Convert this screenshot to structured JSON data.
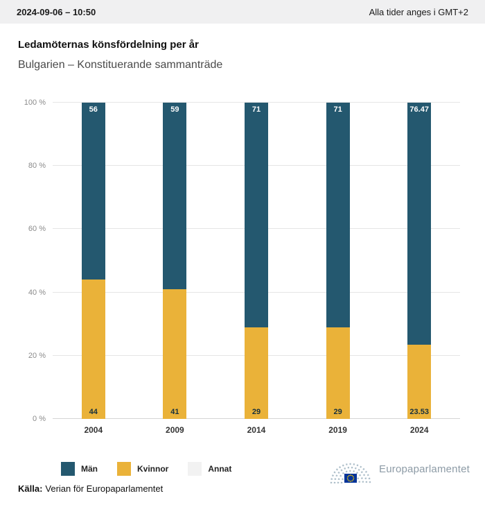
{
  "header": {
    "datetime": "2024-09-06 – 10:50",
    "timezone": "Alla tider anges i GMT+2"
  },
  "title": "Ledamöternas könsfördelning per år",
  "subtitle": "Bulgarien – Konstituerande sammanträde",
  "chart_data": {
    "type": "bar",
    "stacked": true,
    "title": "Ledamöternas könsfördelning per år",
    "subtitle": "Bulgarien – Konstituerande sammanträde",
    "categories": [
      "2004",
      "2009",
      "2014",
      "2019",
      "2024"
    ],
    "series": [
      {
        "name": "Män",
        "color": "#24586f",
        "values": [
          56,
          59,
          71,
          71,
          76.47
        ],
        "labels": [
          "56",
          "59",
          "71",
          "71",
          "76.47"
        ],
        "label_color": "#ffffff"
      },
      {
        "name": "Kvinnor",
        "color": "#eab239",
        "values": [
          44,
          41,
          29,
          29,
          23.53
        ],
        "labels": [
          "44",
          "41",
          "29",
          "29",
          "23.53"
        ],
        "label_color": "#16303d"
      },
      {
        "name": "Annat",
        "color": "#f2f2f2",
        "values": [
          0,
          0,
          0,
          0,
          0
        ],
        "labels": [
          "",
          "",
          "",
          "",
          ""
        ],
        "label_color": "#333333"
      }
    ],
    "ylim": [
      0,
      100
    ],
    "yticks": [
      "0 %",
      "20 %",
      "40 %",
      "60 %",
      "80 %",
      "100 %"
    ],
    "grid": true,
    "legend_position": "bottom"
  },
  "footer": {
    "source_label": "Källa:",
    "source_text": "Verian för Europaparlamentet",
    "logo_text": "Europaparlamentet"
  },
  "colors": {
    "men": "#24586f",
    "women": "#eab239",
    "other": "#f2f2f2",
    "topbar_bg": "#f0f0f1",
    "eu_flag_blue": "#003399",
    "eu_star_gold": "#ffcc00"
  }
}
